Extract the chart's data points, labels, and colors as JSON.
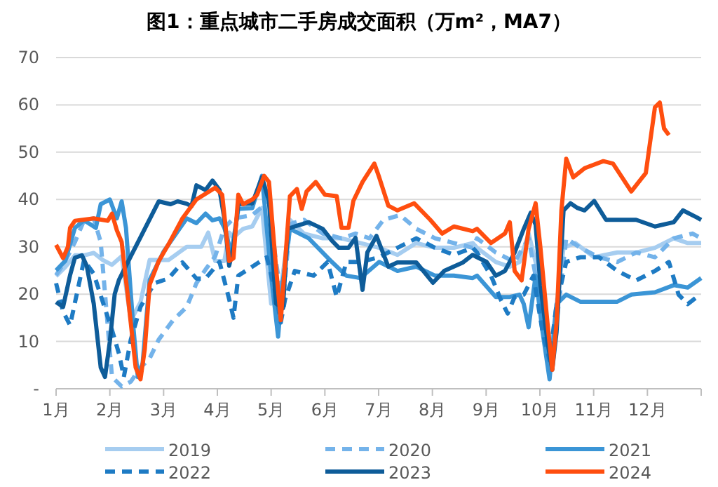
{
  "chart_data": {
    "type": "line",
    "title": "图1：重点城市二手房成交面积（万m²，MA7）",
    "xlim": [
      1,
      13
    ],
    "xticks": [
      {
        "value": 1,
        "label": "1月"
      },
      {
        "value": 2,
        "label": "2月"
      },
      {
        "value": 3,
        "label": "3月"
      },
      {
        "value": 4,
        "label": "4月"
      },
      {
        "value": 5,
        "label": "5月"
      },
      {
        "value": 6,
        "label": "6月"
      },
      {
        "value": 7,
        "label": "7月"
      },
      {
        "value": 8,
        "label": "8月"
      },
      {
        "value": 9,
        "label": "9月"
      },
      {
        "value": 10,
        "label": "10月"
      },
      {
        "value": 11,
        "label": "11月"
      },
      {
        "value": 12,
        "label": "12月"
      },
      {
        "value": 13,
        "label": null
      }
    ],
    "ylim": [
      0,
      70
    ],
    "yticks": [
      {
        "value": 0,
        "label": "-"
      },
      10,
      20,
      30,
      40,
      50,
      60,
      70
    ],
    "grid": "y",
    "legend": "bottom",
    "series": [
      {
        "name": "2019",
        "color": "#a6cdf0",
        "line_style": "solid",
        "x": [
          1.0,
          1.17,
          1.35,
          1.52,
          1.7,
          1.87,
          2.04,
          2.22,
          2.39,
          2.57,
          2.74,
          3.09,
          3.43,
          3.7,
          3.83,
          3.96,
          4.13,
          4.22,
          4.3,
          4.48,
          4.65,
          4.83,
          5.0,
          5.18,
          5.35,
          5.61,
          5.96,
          6.31,
          6.66,
          7.01,
          7.35,
          7.7,
          8.05,
          8.4,
          8.75,
          8.83,
          9.18,
          9.44,
          9.62,
          9.79,
          9.92,
          10.05,
          10.18,
          10.31,
          10.44,
          10.66,
          11.01,
          11.44,
          11.79,
          12.14,
          12.49,
          12.75,
          13.0
        ],
        "values": [
          23.8,
          25.7,
          28.2,
          28.2,
          28.7,
          27.2,
          26.2,
          28,
          14.4,
          18.3,
          27.2,
          27.2,
          30,
          30,
          33,
          27,
          27,
          33,
          32,
          33.8,
          34.3,
          38.2,
          18,
          20.9,
          35.7,
          32.8,
          31.8,
          31.8,
          30.8,
          29.8,
          28.3,
          30.8,
          29.8,
          29.8,
          30.8,
          29.8,
          26.8,
          25.8,
          26.8,
          32.8,
          26.8,
          17.9,
          6,
          17.9,
          29.8,
          30.8,
          27.8,
          28.8,
          28.8,
          29.8,
          31.8,
          30.8,
          30.8
        ]
      },
      {
        "name": "2020",
        "color": "#74b3ea",
        "line_style": "dashed",
        "x": [
          1.0,
          1.17,
          1.35,
          1.52,
          1.7,
          1.83,
          2.04,
          2.22,
          2.39,
          2.57,
          2.74,
          2.91,
          3.17,
          3.43,
          3.61,
          3.78,
          3.96,
          4.13,
          4.3,
          4.65,
          4.96,
          5.09,
          5.22,
          5.35,
          5.61,
          5.96,
          6.31,
          6.57,
          6.83,
          7.09,
          7.4,
          7.7,
          8.05,
          8.4,
          8.75,
          8.83,
          9.18,
          9.53,
          9.79,
          10.05,
          10.18,
          10.31,
          10.49,
          10.75,
          11.1,
          11.44,
          11.79,
          12.14,
          12.49,
          12.84,
          13.0
        ],
        "values": [
          24,
          27,
          31,
          35.6,
          36,
          31,
          2.5,
          0.5,
          1.5,
          4.5,
          6.4,
          10.4,
          14.4,
          17.3,
          22.3,
          25.2,
          28,
          34,
          36,
          36.7,
          39.7,
          26.8,
          17.9,
          34.8,
          35.7,
          32.8,
          31.8,
          32.8,
          31.8,
          35.7,
          36.7,
          33.8,
          31.8,
          30.8,
          29.8,
          31.8,
          28.8,
          26.8,
          31.8,
          15.9,
          5,
          14,
          31.8,
          29.8,
          27.8,
          26.8,
          28.8,
          27.8,
          31.8,
          32.8,
          31.8
        ]
      },
      {
        "name": "2021",
        "color": "#3b95d6",
        "line_style": "solid",
        "x": [
          1.0,
          1.17,
          1.35,
          1.52,
          1.74,
          1.83,
          2.0,
          2.13,
          2.22,
          2.3,
          2.43,
          2.52,
          2.61,
          2.74,
          3.0,
          3.43,
          3.61,
          3.78,
          3.91,
          4.04,
          4.13,
          4.26,
          4.39,
          4.65,
          4.83,
          5.0,
          5.13,
          5.22,
          5.35,
          5.7,
          6.13,
          6.4,
          6.66,
          7.01,
          7.35,
          7.7,
          8.05,
          8.4,
          8.75,
          8.83,
          9.18,
          9.44,
          9.62,
          9.7,
          9.79,
          9.92,
          10.05,
          10.18,
          10.31,
          10.49,
          10.75,
          11.1,
          11.44,
          11.7,
          12.14,
          12.49,
          12.75,
          13.0
        ],
        "values": [
          25,
          27,
          34,
          35.6,
          34,
          39,
          40,
          36,
          39.6,
          34,
          14,
          2.5,
          5.4,
          23,
          29,
          36,
          35,
          37,
          35.6,
          36,
          34,
          28.7,
          38,
          38.2,
          45,
          23.9,
          11,
          22.9,
          33.8,
          31.8,
          26.8,
          23.9,
          23.4,
          26.8,
          24.9,
          25.8,
          23.9,
          23.9,
          23.4,
          23.9,
          19.4,
          19.4,
          19.9,
          17.9,
          13,
          23.9,
          12,
          2,
          17.9,
          19.9,
          18.4,
          18.4,
          18.4,
          19.9,
          20.4,
          21.9,
          21.4,
          23.4
        ]
      },
      {
        "name": "2022",
        "color": "#1e7bc4",
        "line_style": "dashed",
        "x": [
          1.0,
          1.13,
          1.26,
          1.39,
          1.52,
          1.7,
          1.87,
          2.04,
          2.17,
          2.26,
          2.39,
          2.57,
          2.83,
          3.09,
          3.35,
          3.61,
          3.78,
          4.04,
          4.22,
          4.3,
          4.39,
          4.65,
          4.92,
          5.09,
          5.18,
          5.26,
          5.44,
          5.79,
          6.05,
          6.22,
          6.4,
          6.66,
          7.01,
          7.35,
          7.7,
          8.05,
          8.4,
          8.75,
          8.83,
          9.09,
          9.27,
          9.4,
          9.53,
          9.7,
          9.88,
          10.05,
          10.18,
          10.31,
          10.49,
          10.75,
          11.1,
          11.44,
          11.79,
          12.14,
          12.4,
          12.58,
          12.75,
          12.92
        ],
        "values": [
          22.3,
          16.3,
          13.4,
          20.3,
          27.2,
          24.3,
          18.3,
          12.4,
          7.4,
          2.5,
          10.4,
          17.3,
          22.3,
          23.3,
          26.7,
          23.3,
          23.3,
          26.8,
          18.9,
          15,
          23.9,
          25.8,
          27.8,
          19.9,
          14,
          18.9,
          24.9,
          23.9,
          26.8,
          19.4,
          26.8,
          26.8,
          27.8,
          29.8,
          31.8,
          29.8,
          28.3,
          29.8,
          28.8,
          23.9,
          18.9,
          15.9,
          19.4,
          19.9,
          23.9,
          12,
          6,
          17.9,
          26.8,
          27.8,
          27.8,
          24.9,
          22.9,
          24.9,
          26.8,
          19.9,
          17.9,
          19.4
        ]
      },
      {
        "name": "2023",
        "color": "#0e5c99",
        "line_style": "solid",
        "x": [
          1.0,
          1.13,
          1.26,
          1.35,
          1.48,
          1.57,
          1.7,
          1.83,
          1.91,
          2.0,
          2.09,
          2.17,
          2.39,
          2.57,
          2.91,
          3.13,
          3.26,
          3.43,
          3.52,
          3.61,
          3.78,
          3.91,
          4.04,
          4.13,
          4.22,
          4.3,
          4.39,
          4.65,
          4.83,
          4.96,
          5.09,
          5.22,
          5.31,
          5.44,
          5.7,
          5.96,
          6.13,
          6.26,
          6.44,
          6.57,
          6.7,
          6.79,
          6.96,
          7.18,
          7.35,
          7.7,
          8.01,
          8.22,
          8.57,
          8.75,
          8.83,
          9.01,
          9.18,
          9.35,
          9.53,
          9.7,
          9.83,
          9.92,
          10.01,
          10.14,
          10.23,
          10.31,
          10.44,
          10.57,
          10.7,
          10.83,
          11.01,
          11.23,
          11.44,
          11.79,
          12.14,
          12.49,
          12.66,
          12.92,
          13.0
        ],
        "values": [
          18.3,
          17.3,
          24,
          27.7,
          28.2,
          26,
          18,
          4.5,
          2.5,
          10,
          20,
          23,
          28,
          32,
          39.6,
          39,
          39.6,
          39.1,
          38.6,
          43,
          42,
          44,
          42,
          36,
          26,
          30,
          39,
          39.2,
          44.7,
          39.7,
          18,
          17,
          33.8,
          34.3,
          35.2,
          33.8,
          31.3,
          29.8,
          29.8,
          31.9,
          20.9,
          28.8,
          32.3,
          25.8,
          26.7,
          26.7,
          22.4,
          24.9,
          26.7,
          28.3,
          27.8,
          26.8,
          23.9,
          24.9,
          28.8,
          33.8,
          37.2,
          34.7,
          21.9,
          10,
          4,
          12,
          37.7,
          39.2,
          38.2,
          37.7,
          39.7,
          35.7,
          35.7,
          35.7,
          34.3,
          35.2,
          37.7,
          36.2,
          35.7
        ]
      },
      {
        "name": "2024",
        "color": "#ff4e0f",
        "line_style": "solid",
        "x": [
          1.0,
          1.13,
          1.22,
          1.26,
          1.35,
          1.7,
          1.96,
          2.04,
          2.13,
          2.22,
          2.35,
          2.48,
          2.57,
          2.65,
          2.74,
          2.91,
          3.09,
          3.35,
          3.61,
          3.96,
          4.09,
          4.22,
          4.3,
          4.39,
          4.48,
          4.65,
          4.74,
          4.87,
          4.96,
          5.09,
          5.18,
          5.26,
          5.35,
          5.48,
          5.57,
          5.66,
          5.83,
          6.0,
          6.22,
          6.31,
          6.44,
          6.53,
          6.7,
          6.92,
          7.01,
          7.18,
          7.35,
          7.66,
          7.96,
          8.18,
          8.4,
          8.75,
          8.83,
          9.09,
          9.35,
          9.44,
          9.53,
          9.66,
          9.79,
          9.92,
          10.01,
          10.14,
          10.23,
          10.31,
          10.4,
          10.49,
          10.62,
          10.83,
          11.18,
          11.36,
          11.7,
          11.97,
          12.14,
          12.23,
          12.31,
          12.4
        ],
        "values": [
          30.4,
          27.6,
          30,
          34,
          35.5,
          36,
          35.5,
          37,
          33.5,
          31,
          18,
          4.5,
          2,
          8.4,
          22,
          27,
          30.5,
          36,
          40,
          42.5,
          41,
          27,
          27.6,
          41,
          39,
          40,
          41,
          45,
          43.7,
          25.8,
          14.5,
          26.8,
          40.7,
          42.2,
          38,
          41.7,
          43.7,
          41,
          40.7,
          34,
          34,
          39.7,
          43.7,
          47.6,
          44.7,
          38.7,
          37.7,
          39.2,
          35.7,
          32.8,
          34.3,
          33.3,
          33.8,
          30.8,
          32.8,
          35.2,
          24.9,
          22.9,
          33.8,
          39.2,
          29.8,
          14,
          4,
          14,
          37.7,
          48.6,
          44.7,
          46.6,
          48.1,
          47.6,
          41.7,
          45.6,
          59.5,
          60.5,
          55,
          53.6
        ]
      }
    ]
  }
}
